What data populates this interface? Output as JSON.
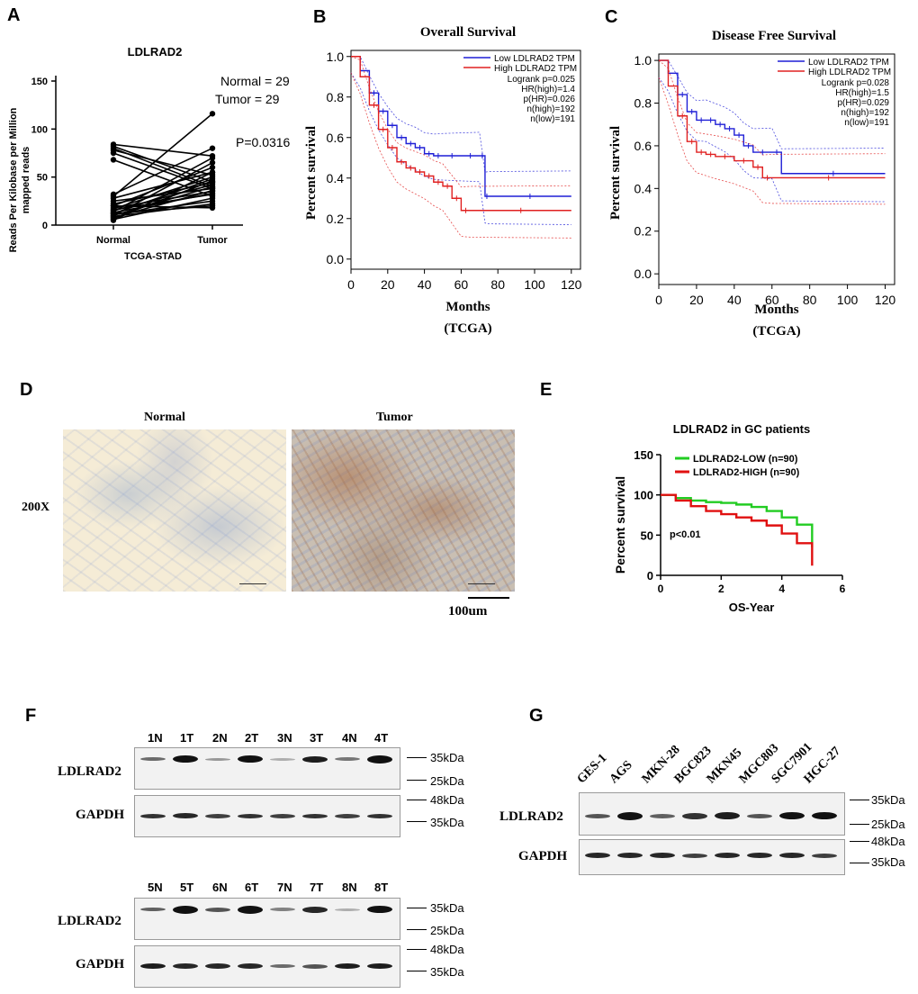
{
  "panels": {
    "a": "A",
    "b": "B",
    "c": "C",
    "d": "D",
    "e": "E",
    "f": "F",
    "g": "G"
  },
  "panel_a": {
    "title": "LDLRAD2",
    "ylabel_line1": "Reads Per Kilobase per Million",
    "ylabel_line2": "mapped reads",
    "xlabel": "TCGA-STAD",
    "normal_n": "Normal = 29",
    "tumor_n": "Tumor = 29",
    "pvalue": "P=0.0316",
    "yticks": [
      "0",
      "50",
      "100",
      "150"
    ],
    "xticks": [
      "Normal",
      "Tumor"
    ]
  },
  "panel_b": {
    "title": "Overall Survival",
    "ylabel": "Percent survival",
    "xlabel": "Months",
    "xsub": "(TCGA)",
    "legend_low": "Low LDLRAD2 TPM",
    "legend_high": "High LDLRAD2 TPM",
    "stats": [
      "Logrank p=0.025",
      "HR(high)=1.4",
      "p(HR)=0.026",
      "n(high)=192",
      "n(low)=191"
    ],
    "yticks": [
      "0.0",
      "0.2",
      "0.4",
      "0.6",
      "0.8",
      "1.0"
    ],
    "xticks": [
      "0",
      "20",
      "40",
      "60",
      "80",
      "100",
      "120"
    ]
  },
  "panel_c": {
    "title": "Disease Free Survival",
    "ylabel": "Percent survival",
    "xlabel": "Months",
    "xsub": "(TCGA)",
    "legend_low": "Low LDLRAD2 TPM",
    "legend_high": "High LDLRAD2 TPM",
    "stats": [
      "Logrank p=0.028",
      "HR(high)=1.5",
      "p(HR)=0.029",
      "n(high)=192",
      "n(low)=191"
    ],
    "yticks": [
      "0.0",
      "0.2",
      "0.4",
      "0.6",
      "0.8",
      "1.0"
    ],
    "xticks": [
      "0",
      "20",
      "40",
      "60",
      "80",
      "100",
      "120"
    ]
  },
  "panel_d": {
    "normal": "Normal",
    "tumor": "Tumor",
    "magnification": "200X",
    "scale": "100um"
  },
  "panel_e": {
    "title": "LDLRAD2 in GC patients",
    "legend_low": "LDLRAD2-LOW (n=90)",
    "legend_high": "LDLRAD2-HIGH (n=90)",
    "ylabel": "Percent survival",
    "xlabel": "OS-Year",
    "pvalue": "p<0.01",
    "yticks": [
      "0",
      "50",
      "100",
      "150"
    ],
    "xticks": [
      "0",
      "2",
      "4",
      "6"
    ]
  },
  "panel_f": {
    "top_lanes": [
      "1N",
      "1T",
      "2N",
      "2T",
      "3N",
      "3T",
      "4N",
      "4T"
    ],
    "bottom_lanes": [
      "5N",
      "5T",
      "6N",
      "6T",
      "7N",
      "7T",
      "8N",
      "8T"
    ],
    "protein1": "LDLRAD2",
    "protein2": "GAPDH",
    "markers": [
      "35kDa",
      "25kDa",
      "48kDa",
      "35kDa"
    ]
  },
  "panel_g": {
    "lanes": [
      "GES-1",
      "AGS",
      "MKN-28",
      "BGC823",
      "MKN45",
      "MGC803",
      "SGC7901",
      "HGC-27"
    ],
    "protein1": "LDLRAD2",
    "protein2": "GAPDH",
    "markers": [
      "35kDa",
      "25kDa",
      "48kDa",
      "35kDa"
    ]
  },
  "colors": {
    "low": "#1f1fd6",
    "high": "#e02020",
    "e_low": "#22cc22",
    "e_high": "#e01010"
  },
  "chart_data": [
    {
      "type": "line",
      "title": "LDLRAD2",
      "categories": [
        "Normal",
        "Tumor"
      ],
      "ylabel": "Reads Per Kilobase per Million mapped reads",
      "xlabel": "TCGA-STAD",
      "ylim": [
        0,
        150
      ],
      "pairs": [
        [
          84,
          72
        ],
        [
          82,
          45
        ],
        [
          80,
          40
        ],
        [
          78,
          52
        ],
        [
          75,
          38
        ],
        [
          68,
          30
        ],
        [
          32,
          80
        ],
        [
          30,
          116
        ],
        [
          28,
          55
        ],
        [
          22,
          44
        ],
        [
          20,
          60
        ],
        [
          18,
          35
        ],
        [
          17,
          50
        ],
        [
          15,
          42
        ],
        [
          14,
          70
        ],
        [
          13,
          33
        ],
        [
          12,
          48
        ],
        [
          11,
          25
        ],
        [
          10,
          40
        ],
        [
          9,
          22
        ],
        [
          8,
          36
        ],
        [
          7,
          46
        ],
        [
          6,
          28
        ],
        [
          5,
          55
        ],
        [
          20,
          18
        ],
        [
          16,
          32
        ],
        [
          12,
          20
        ],
        [
          25,
          38
        ],
        [
          10,
          65
        ]
      ]
    },
    {
      "type": "line",
      "title": "Overall Survival",
      "xlabel": "Months",
      "ylabel": "Percent survival",
      "xlim": [
        0,
        125
      ],
      "ylim": [
        0,
        1
      ],
      "series": [
        {
          "name": "Low LDLRAD2 TPM",
          "x": [
            0,
            5,
            10,
            15,
            20,
            25,
            30,
            35,
            40,
            45,
            50,
            60,
            70,
            73,
            75,
            120
          ],
          "y": [
            1,
            0.93,
            0.82,
            0.73,
            0.66,
            0.6,
            0.57,
            0.55,
            0.52,
            0.51,
            0.51,
            0.51,
            0.51,
            0.31,
            0.31,
            0.31
          ]
        },
        {
          "name": "High LDLRAD2 TPM",
          "x": [
            0,
            5,
            10,
            15,
            20,
            25,
            30,
            35,
            40,
            45,
            50,
            55,
            60,
            65,
            120
          ],
          "y": [
            1,
            0.9,
            0.76,
            0.64,
            0.55,
            0.48,
            0.45,
            0.43,
            0.41,
            0.38,
            0.36,
            0.3,
            0.24,
            0.24,
            0.24
          ]
        }
      ]
    },
    {
      "type": "line",
      "title": "Disease Free Survival",
      "xlabel": "Months",
      "ylabel": "Percent survival",
      "xlim": [
        0,
        125
      ],
      "ylim": [
        0,
        1
      ],
      "series": [
        {
          "name": "Low LDLRAD2 TPM",
          "x": [
            0,
            5,
            10,
            15,
            20,
            25,
            30,
            35,
            40,
            45,
            50,
            60,
            65,
            120
          ],
          "y": [
            1,
            0.94,
            0.84,
            0.76,
            0.72,
            0.72,
            0.7,
            0.68,
            0.65,
            0.6,
            0.57,
            0.57,
            0.47,
            0.47
          ]
        },
        {
          "name": "High LDLRAD2 TPM",
          "x": [
            0,
            5,
            10,
            15,
            20,
            25,
            30,
            40,
            50,
            55,
            60,
            120
          ],
          "y": [
            1,
            0.88,
            0.74,
            0.62,
            0.57,
            0.56,
            0.55,
            0.53,
            0.5,
            0.45,
            0.45,
            0.45
          ]
        }
      ]
    },
    {
      "type": "line",
      "title": "LDLRAD2 in GC patients",
      "xlabel": "OS-Year",
      "ylabel": "Percent survival",
      "xlim": [
        0,
        6
      ],
      "ylim": [
        0,
        150
      ],
      "series": [
        {
          "name": "LDLRAD2-LOW (n=90)",
          "x": [
            0,
            0.5,
            1,
            1.5,
            2,
            2.5,
            3,
            3.5,
            4,
            4.5,
            5,
            5
          ],
          "y": [
            100,
            96,
            93,
            91,
            90,
            88,
            85,
            80,
            72,
            63,
            58,
            35
          ]
        },
        {
          "name": "LDLRAD2-HIGH (n=90)",
          "x": [
            0,
            0.5,
            1,
            1.5,
            2,
            2.5,
            3,
            3.5,
            4,
            4.5,
            5,
            5
          ],
          "y": [
            100,
            93,
            86,
            80,
            76,
            72,
            68,
            62,
            52,
            40,
            28,
            12
          ]
        }
      ]
    }
  ]
}
